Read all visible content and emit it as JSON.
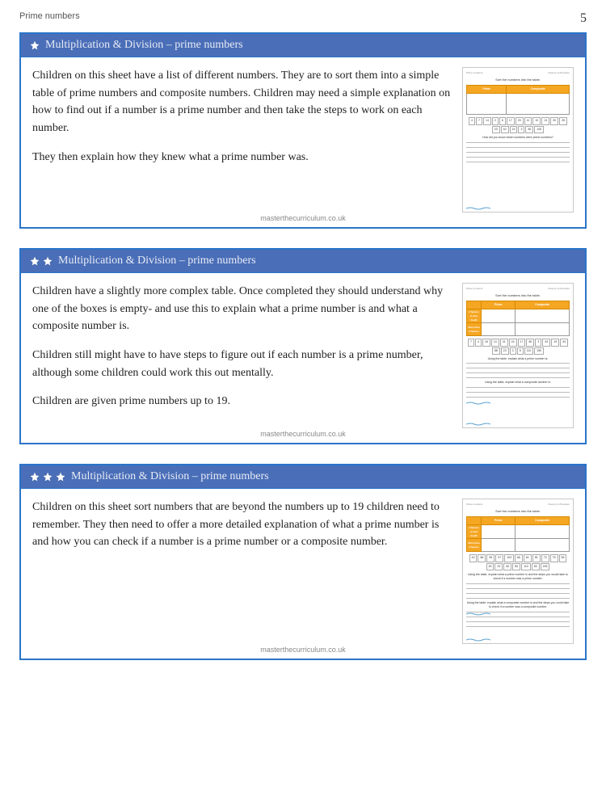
{
  "page": {
    "topic": "Prime numbers",
    "number": "5",
    "footer": "masterthecurriculum.co.uk"
  },
  "accent_blue": "#4a6eb8",
  "border_blue": "#2a74c9",
  "thumb_orange": "#f5a623",
  "cards": [
    {
      "stars": 1,
      "title": "Multiplication & Division – prime numbers",
      "paragraphs": [
        "Children on this sheet have a list of different numbers. They are to sort them into a simple table of prime numbers and composite numbers. Children may need a simple explanation on how to find out if a number is a prime number and then take the steps to work on each number.",
        "They then explain how they knew what a prime number was."
      ],
      "thumb": {
        "title": "Sort the numbers into the table.",
        "cols": [
          "Prime",
          "Composite"
        ],
        "row_labels": [],
        "nums": [
          "4",
          "7",
          "14",
          "2",
          "6",
          "17",
          "20",
          "11",
          "10",
          "13",
          "30",
          "25",
          "23",
          "40",
          "19",
          "3",
          "50",
          "100"
        ],
        "q1": "How did you know which numbers were prime numbers?",
        "lines1": 4
      }
    },
    {
      "stars": 2,
      "title": "Multiplication & Division – prime numbers",
      "paragraphs": [
        "Children have a slightly more complex table. Once completed they should understand why one of the boxes is empty- and use this to explain what a prime number is and what a composite number is.",
        "Children still might have to have steps to figure out if each number is a prime number, although some children could work this out mentally.",
        "Children are given prime numbers up to 19."
      ],
      "thumb": {
        "title": "Sort the numbers into the table.",
        "cols": [
          "Prime",
          "Composite"
        ],
        "row_labels": [
          "2 factors (1 and itself)",
          "More than 2 factors"
        ],
        "nums": [
          "7",
          "4",
          "18",
          "13",
          "21",
          "24",
          "17",
          "80",
          "3",
          "43",
          "19",
          "34",
          "88",
          "23",
          "2",
          "5",
          "110",
          "150"
        ],
        "q1": "Using the table, explain what a prime number is.",
        "lines1": 3,
        "q2": "Using the table, explain what a composite number is.",
        "lines2": 2
      }
    },
    {
      "stars": 3,
      "title": "Multiplication & Division – prime numbers",
      "paragraphs": [
        "Children on this sheet sort numbers that are beyond the numbers up to 19 children need to remember. They then need to offer a more detailed explanation of what a prime number is and how you can check if a number is a prime number or a composite number."
      ],
      "thumb": {
        "title": "Sort the numbers into the table.",
        "cols": [
          "Prime",
          "Composite"
        ],
        "row_labels": [
          "2 factors (1 and itself)",
          "More than 2 factors"
        ],
        "nums": [
          "43",
          "86",
          "99",
          "97",
          "103",
          "66",
          "61",
          "81",
          "73",
          "75",
          "55",
          "45",
          "29",
          "60",
          "83",
          "110",
          "53",
          "293"
        ],
        "q1": "Using the table, explain what a prime number is and the steps you would take to check if a number was a prime number.",
        "lines1": 3,
        "q2": "Using the table, explain what a composite number is and the steps you could take to check if a number was a composite number.",
        "lines2": 3
      }
    }
  ]
}
